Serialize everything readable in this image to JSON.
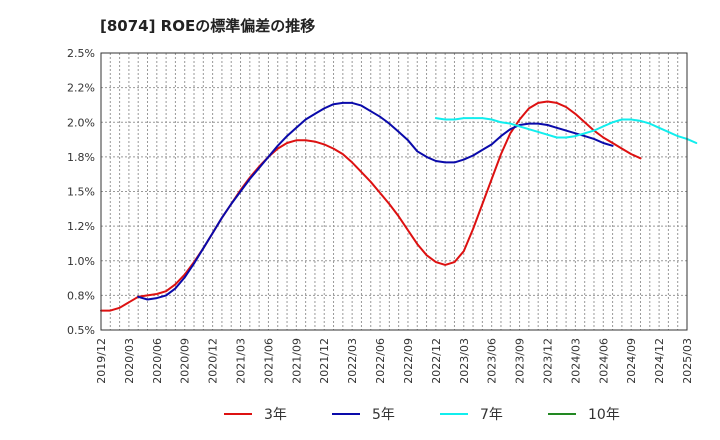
{
  "chart_data": {
    "type": "line",
    "title": "[8074]  ROEの標準偏差の推移",
    "xlabel": "",
    "ylabel": "",
    "ylim": [
      0.5,
      2.5
    ],
    "grid": true,
    "y_ticks": [
      0.5,
      0.75,
      1.0,
      1.25,
      1.5,
      1.75,
      2.0,
      2.25,
      2.5
    ],
    "y_tick_labels": [
      "0.5%",
      "0.8%",
      "1.0%",
      "1.2%",
      "1.5%",
      "1.8%",
      "2.0%",
      "2.2%",
      "2.5%"
    ],
    "x_tick_labels": [
      "2019/12",
      "2020/03",
      "2020/06",
      "2020/09",
      "2020/12",
      "2021/03",
      "2021/06",
      "2021/09",
      "2021/12",
      "2022/03",
      "2022/06",
      "2022/09",
      "2022/12",
      "2023/03",
      "2023/06",
      "2023/09",
      "2023/12",
      "2024/03",
      "2024/06",
      "2024/09",
      "2024/12",
      "2025/03"
    ],
    "legend_position": "bottom",
    "series": [
      {
        "name": "3年",
        "color": "#dd1111",
        "points": [
          [
            0,
            0.64
          ],
          [
            1,
            0.64
          ],
          [
            2,
            0.66
          ],
          [
            3,
            0.7
          ],
          [
            4,
            0.74
          ],
          [
            5,
            0.75
          ],
          [
            6,
            0.76
          ],
          [
            7,
            0.78
          ],
          [
            8,
            0.83
          ],
          [
            9,
            0.9
          ],
          [
            10,
            0.99
          ],
          [
            11,
            1.09
          ],
          [
            12,
            1.2
          ],
          [
            13,
            1.31
          ],
          [
            14,
            1.41
          ],
          [
            15,
            1.51
          ],
          [
            16,
            1.6
          ],
          [
            17,
            1.68
          ],
          [
            18,
            1.75
          ],
          [
            19,
            1.81
          ],
          [
            20,
            1.85
          ],
          [
            21,
            1.87
          ],
          [
            22,
            1.87
          ],
          [
            23,
            1.86
          ],
          [
            24,
            1.84
          ],
          [
            25,
            1.81
          ],
          [
            26,
            1.77
          ],
          [
            27,
            1.71
          ],
          [
            28,
            1.64
          ],
          [
            29,
            1.57
          ],
          [
            30,
            1.49
          ],
          [
            31,
            1.41
          ],
          [
            32,
            1.32
          ],
          [
            33,
            1.22
          ],
          [
            34,
            1.12
          ],
          [
            35,
            1.04
          ],
          [
            36,
            0.99
          ],
          [
            37,
            0.97
          ],
          [
            38,
            0.99
          ],
          [
            39,
            1.07
          ],
          [
            40,
            1.23
          ],
          [
            41,
            1.41
          ],
          [
            42,
            1.59
          ],
          [
            43,
            1.77
          ],
          [
            44,
            1.92
          ],
          [
            45,
            2.02
          ],
          [
            46,
            2.1
          ],
          [
            47,
            2.14
          ],
          [
            48,
            2.15
          ],
          [
            49,
            2.14
          ],
          [
            50,
            2.11
          ],
          [
            51,
            2.06
          ],
          [
            52,
            2.0
          ],
          [
            53,
            1.94
          ],
          [
            54,
            1.89
          ],
          [
            55,
            1.85
          ],
          [
            56,
            1.81
          ],
          [
            57,
            1.77
          ],
          [
            58,
            1.74
          ]
        ]
      },
      {
        "name": "5年",
        "color": "#0a0aaa",
        "points": [
          [
            4,
            0.74
          ],
          [
            5,
            0.72
          ],
          [
            6,
            0.73
          ],
          [
            7,
            0.75
          ],
          [
            8,
            0.8
          ],
          [
            9,
            0.88
          ],
          [
            10,
            0.98
          ],
          [
            11,
            1.09
          ],
          [
            12,
            1.2
          ],
          [
            13,
            1.31
          ],
          [
            14,
            1.41
          ],
          [
            15,
            1.5
          ],
          [
            16,
            1.59
          ],
          [
            17,
            1.67
          ],
          [
            18,
            1.75
          ],
          [
            19,
            1.83
          ],
          [
            20,
            1.9
          ],
          [
            21,
            1.96
          ],
          [
            22,
            2.02
          ],
          [
            23,
            2.06
          ],
          [
            24,
            2.1
          ],
          [
            25,
            2.13
          ],
          [
            26,
            2.14
          ],
          [
            27,
            2.14
          ],
          [
            28,
            2.12
          ],
          [
            29,
            2.08
          ],
          [
            30,
            2.04
          ],
          [
            31,
            1.99
          ],
          [
            32,
            1.93
          ],
          [
            33,
            1.87
          ],
          [
            34,
            1.79
          ],
          [
            35,
            1.75
          ],
          [
            36,
            1.72
          ],
          [
            37,
            1.71
          ],
          [
            38,
            1.71
          ],
          [
            39,
            1.73
          ],
          [
            40,
            1.76
          ],
          [
            41,
            1.8
          ],
          [
            42,
            1.84
          ],
          [
            43,
            1.9
          ],
          [
            44,
            1.95
          ],
          [
            45,
            1.98
          ],
          [
            46,
            1.99
          ],
          [
            47,
            1.99
          ],
          [
            48,
            1.98
          ],
          [
            49,
            1.96
          ],
          [
            50,
            1.94
          ],
          [
            51,
            1.92
          ],
          [
            52,
            1.9
          ],
          [
            53,
            1.88
          ],
          [
            54,
            1.85
          ],
          [
            55,
            1.83
          ]
        ]
      },
      {
        "name": "7年",
        "color": "#11eeee",
        "points": [
          [
            36,
            2.03
          ],
          [
            37,
            2.02
          ],
          [
            38,
            2.02
          ],
          [
            39,
            2.03
          ],
          [
            40,
            2.03
          ],
          [
            41,
            2.03
          ],
          [
            42,
            2.02
          ],
          [
            43,
            2.0
          ],
          [
            44,
            1.99
          ],
          [
            45,
            1.97
          ],
          [
            46,
            1.95
          ],
          [
            47,
            1.93
          ],
          [
            48,
            1.91
          ],
          [
            49,
            1.89
          ],
          [
            50,
            1.89
          ],
          [
            51,
            1.9
          ],
          [
            52,
            1.92
          ],
          [
            53,
            1.94
          ],
          [
            54,
            1.97
          ],
          [
            55,
            2.0
          ],
          [
            56,
            2.02
          ],
          [
            57,
            2.02
          ],
          [
            58,
            2.01
          ],
          [
            59,
            1.99
          ],
          [
            60,
            1.96
          ],
          [
            61,
            1.93
          ],
          [
            62,
            1.9
          ],
          [
            63,
            1.88
          ],
          [
            64,
            1.85
          ]
        ]
      },
      {
        "name": "10年",
        "color": "#228822",
        "points": []
      }
    ]
  }
}
